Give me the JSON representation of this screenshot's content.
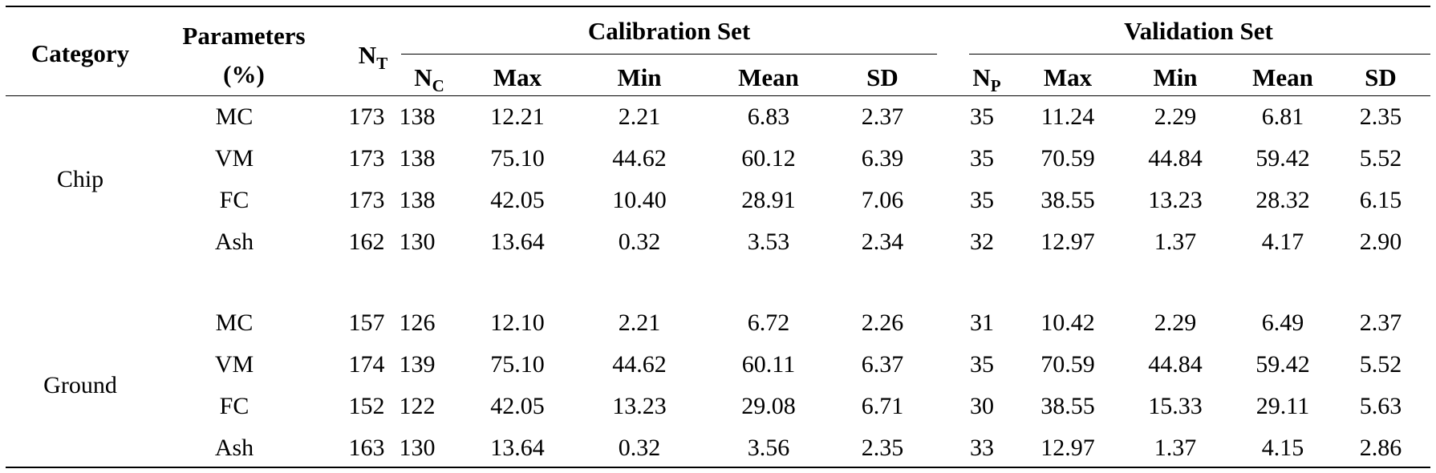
{
  "header": {
    "category": "Category",
    "parameters_line1": "Parameters",
    "parameters_line2": "(%)",
    "nt_main": "N",
    "nt_sub": "T",
    "calibration_set": "Calibration Set",
    "validation_set": "Validation Set",
    "nc_main": "N",
    "nc_sub": "C",
    "np_main": "N",
    "np_sub": "P",
    "max": "Max",
    "min": "Min",
    "mean": "Mean",
    "sd": "SD"
  },
  "groups": [
    {
      "category": "Chip",
      "rows": [
        {
          "param": "MC",
          "nt": "173",
          "nc": "138",
          "c_max": "12.21",
          "c_min": "2.21",
          "c_mean": "6.83",
          "c_sd": "2.37",
          "np": "35",
          "v_max": "11.24",
          "v_min": "2.29",
          "v_mean": "6.81",
          "v_sd": "2.35"
        },
        {
          "param": "VM",
          "nt": "173",
          "nc": "138",
          "c_max": "75.10",
          "c_min": "44.62",
          "c_mean": "60.12",
          "c_sd": "6.39",
          "np": "35",
          "v_max": "70.59",
          "v_min": "44.84",
          "v_mean": "59.42",
          "v_sd": "5.52"
        },
        {
          "param": "FC",
          "nt": "173",
          "nc": "138",
          "c_max": "42.05",
          "c_min": "10.40",
          "c_mean": "28.91",
          "c_sd": "7.06",
          "np": "35",
          "v_max": "38.55",
          "v_min": "13.23",
          "v_mean": "28.32",
          "v_sd": "6.15"
        },
        {
          "param": "Ash",
          "nt": "162",
          "nc": "130",
          "c_max": "13.64",
          "c_min": "0.32",
          "c_mean": "3.53",
          "c_sd": "2.34",
          "np": "32",
          "v_max": "12.97",
          "v_min": "1.37",
          "v_mean": "4.17",
          "v_sd": "2.90"
        }
      ]
    },
    {
      "category": "Ground",
      "rows": [
        {
          "param": "MC",
          "nt": "157",
          "nc": "126",
          "c_max": "12.10",
          "c_min": "2.21",
          "c_mean": "6.72",
          "c_sd": "2.26",
          "np": "31",
          "v_max": "10.42",
          "v_min": "2.29",
          "v_mean": "6.49",
          "v_sd": "2.37"
        },
        {
          "param": "VM",
          "nt": "174",
          "nc": "139",
          "c_max": "75.10",
          "c_min": "44.62",
          "c_mean": "60.11",
          "c_sd": "6.37",
          "np": "35",
          "v_max": "70.59",
          "v_min": "44.84",
          "v_mean": "59.42",
          "v_sd": "5.52"
        },
        {
          "param": "FC",
          "nt": "152",
          "nc": "122",
          "c_max": "42.05",
          "c_min": "13.23",
          "c_mean": "29.08",
          "c_sd": "6.71",
          "np": "30",
          "v_max": "38.55",
          "v_min": "15.33",
          "v_mean": "29.11",
          "v_sd": "5.63"
        },
        {
          "param": "Ash",
          "nt": "163",
          "nc": "130",
          "c_max": "13.64",
          "c_min": "0.32",
          "c_mean": "3.56",
          "c_sd": "2.35",
          "np": "33",
          "v_max": "12.97",
          "v_min": "1.37",
          "v_mean": "4.15",
          "v_sd": "2.86"
        }
      ]
    }
  ]
}
